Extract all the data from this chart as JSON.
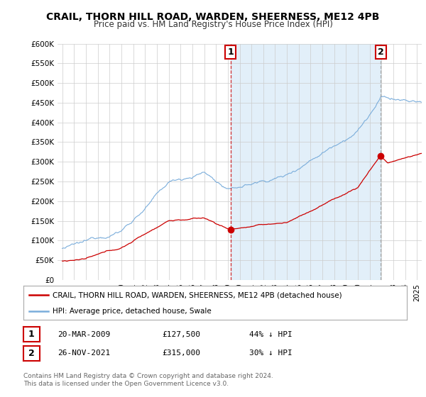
{
  "title": "CRAIL, THORN HILL ROAD, WARDEN, SHEERNESS, ME12 4PB",
  "subtitle": "Price paid vs. HM Land Registry's House Price Index (HPI)",
  "hpi_color": "#7aaddb",
  "hpi_fill_color": "#d6e9f7",
  "price_color": "#cc0000",
  "annotation_color": "#cc0000",
  "vline_color": "#cc0000",
  "vline2_color": "#aaaaaa",
  "ylim": [
    0,
    600000
  ],
  "yticks": [
    0,
    50000,
    100000,
    150000,
    200000,
    250000,
    300000,
    350000,
    400000,
    450000,
    500000,
    550000,
    600000
  ],
  "ytick_labels": [
    "£0",
    "£50K",
    "£100K",
    "£150K",
    "£200K",
    "£250K",
    "£300K",
    "£350K",
    "£400K",
    "£450K",
    "£500K",
    "£550K",
    "£600K"
  ],
  "xlim_start": 1994.6,
  "xlim_end": 2025.4,
  "sale1_x": 2009.22,
  "sale1_y": 127500,
  "sale1_label": "1",
  "sale2_x": 2021.92,
  "sale2_y": 315000,
  "sale2_label": "2",
  "legend_line1": "CRAIL, THORN HILL ROAD, WARDEN, SHEERNESS, ME12 4PB (detached house)",
  "legend_line2": "HPI: Average price, detached house, Swale",
  "table_row1": [
    "1",
    "20-MAR-2009",
    "£127,500",
    "44% ↓ HPI"
  ],
  "table_row2": [
    "2",
    "26-NOV-2021",
    "£315,000",
    "30% ↓ HPI"
  ],
  "footnote": "Contains HM Land Registry data © Crown copyright and database right 2024.\nThis data is licensed under the Open Government Licence v3.0.",
  "background_color": "#ffffff",
  "plot_bg_color": "#ffffff"
}
